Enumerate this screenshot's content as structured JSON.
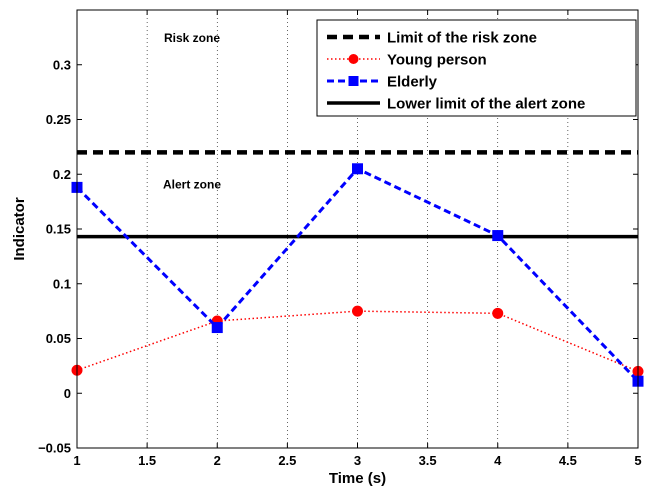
{
  "chart_data": {
    "type": "line",
    "title": "",
    "xlabel": "Time (s)",
    "ylabel": "Indicator",
    "xlim": [
      1,
      5
    ],
    "ylim": [
      -0.05,
      0.35
    ],
    "xticks": [
      1,
      1.5,
      2,
      2.5,
      3,
      3.5,
      4,
      4.5,
      5
    ],
    "xtick_labels": [
      "1",
      "1.5",
      "2",
      "2.5",
      "3",
      "3.5",
      "4",
      "4.5",
      "5"
    ],
    "yticks": [
      -0.05,
      0,
      0.05,
      0.1,
      0.15,
      0.2,
      0.25,
      0.3
    ],
    "ytick_labels": [
      "−0.05",
      "0",
      "0.05",
      "0.1",
      "0.15",
      "0.2",
      "0.25",
      "0.3"
    ],
    "grid": "vertical dotted",
    "legend_position": "top-right",
    "series": [
      {
        "name": "Limit of the risk zone",
        "style": "dashed",
        "color": "#000000",
        "x": [
          1,
          5
        ],
        "values": [
          0.22,
          0.22
        ]
      },
      {
        "name": "Young person",
        "style": "dotted",
        "marker": "circle",
        "color": "#ff0000",
        "x": [
          1,
          2,
          3,
          4,
          5
        ],
        "values": [
          0.021,
          0.066,
          0.075,
          0.073,
          0.02
        ]
      },
      {
        "name": "Elderly",
        "style": "dashed",
        "marker": "square",
        "color": "#0000ff",
        "x": [
          1,
          2,
          3,
          4,
          5
        ],
        "values": [
          0.188,
          0.06,
          0.205,
          0.144,
          0.011
        ]
      },
      {
        "name": "Lower limit of the alert zone",
        "style": "solid",
        "color": "#000000",
        "x": [
          1,
          5
        ],
        "values": [
          0.143,
          0.143
        ]
      }
    ],
    "annotations": [
      {
        "text": "Risk zone",
        "x": 1.82,
        "y": 0.321
      },
      {
        "text": "Alert zone",
        "x": 1.82,
        "y": 0.187
      }
    ]
  }
}
